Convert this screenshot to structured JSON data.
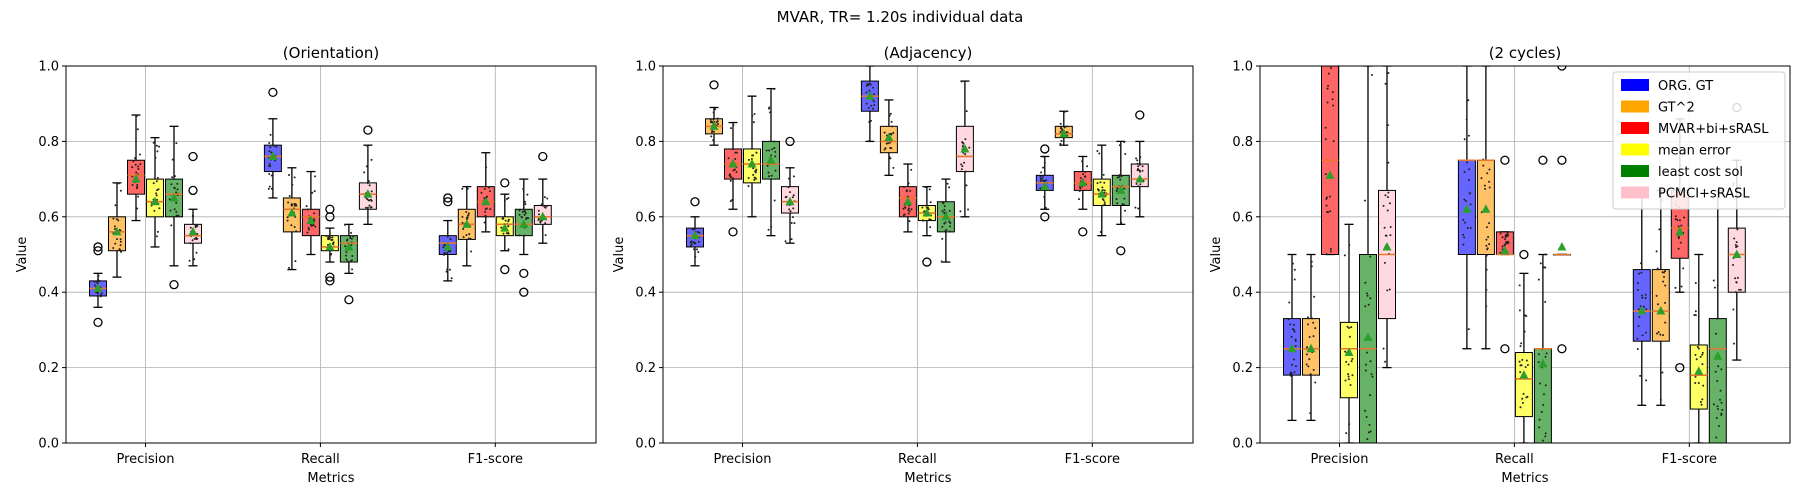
{
  "suptitle": "MVAR, TR= 1.20s individual data",
  "chart_data": [
    {
      "type": "box",
      "title": "(Orientation)",
      "xlabel": "Metrics",
      "ylabel": "Value",
      "ylim": [
        0,
        1
      ],
      "yticks": [
        "0.0",
        "0.2",
        "0.4",
        "0.6",
        "0.8",
        "1.0"
      ],
      "categories": [
        "Precision",
        "Recall",
        "F1-score"
      ],
      "grid": true,
      "series": [
        {
          "name": "ORG. GT",
          "boxes": [
            {
              "whislo": 0.36,
              "q1": 0.39,
              "med": 0.41,
              "q3": 0.43,
              "whishi": 0.45,
              "mean": 0.41,
              "fliers": [
                0.32,
                0.51,
                0.52
              ]
            },
            {
              "whislo": 0.65,
              "q1": 0.72,
              "med": 0.76,
              "q3": 0.79,
              "whishi": 0.86,
              "mean": 0.76,
              "fliers": [
                0.93
              ]
            },
            {
              "whislo": 0.43,
              "q1": 0.5,
              "med": 0.53,
              "q3": 0.55,
              "whishi": 0.59,
              "mean": 0.52,
              "fliers": [
                0.64,
                0.65
              ]
            }
          ]
        },
        {
          "name": "GT^2",
          "boxes": [
            {
              "whislo": 0.44,
              "q1": 0.51,
              "med": 0.56,
              "q3": 0.6,
              "whishi": 0.69,
              "mean": 0.56,
              "fliers": []
            },
            {
              "whislo": 0.46,
              "q1": 0.56,
              "med": 0.62,
              "q3": 0.65,
              "whishi": 0.73,
              "mean": 0.61,
              "fliers": []
            },
            {
              "whislo": 0.47,
              "q1": 0.54,
              "med": 0.58,
              "q3": 0.62,
              "whishi": 0.68,
              "mean": 0.58,
              "fliers": []
            }
          ]
        },
        {
          "name": "MVAR+bi+sRASL",
          "boxes": [
            {
              "whislo": 0.59,
              "q1": 0.66,
              "med": 0.71,
              "q3": 0.75,
              "whishi": 0.87,
              "mean": 0.7,
              "fliers": []
            },
            {
              "whislo": 0.5,
              "q1": 0.55,
              "med": 0.6,
              "q3": 0.62,
              "whishi": 0.72,
              "mean": 0.59,
              "fliers": []
            },
            {
              "whislo": 0.56,
              "q1": 0.6,
              "med": 0.64,
              "q3": 0.68,
              "whishi": 0.77,
              "mean": 0.64,
              "fliers": []
            }
          ]
        },
        {
          "name": "mean error",
          "boxes": [
            {
              "whislo": 0.52,
              "q1": 0.6,
              "med": 0.64,
              "q3": 0.7,
              "whishi": 0.81,
              "mean": 0.64,
              "fliers": []
            },
            {
              "whislo": 0.48,
              "q1": 0.51,
              "med": 0.52,
              "q3": 0.55,
              "whishi": 0.57,
              "mean": 0.52,
              "fliers": [
                0.43,
                0.44,
                0.6,
                0.62
              ]
            },
            {
              "whislo": 0.51,
              "q1": 0.55,
              "med": 0.58,
              "q3": 0.6,
              "whishi": 0.66,
              "mean": 0.57,
              "fliers": [
                0.46,
                0.69
              ]
            }
          ]
        },
        {
          "name": "least cost sol",
          "boxes": [
            {
              "whislo": 0.47,
              "q1": 0.6,
              "med": 0.66,
              "q3": 0.7,
              "whishi": 0.84,
              "mean": 0.65,
              "fliers": [
                0.42
              ]
            },
            {
              "whislo": 0.45,
              "q1": 0.48,
              "med": 0.53,
              "q3": 0.55,
              "whishi": 0.58,
              "mean": 0.52,
              "fliers": [
                0.38
              ]
            },
            {
              "whislo": 0.5,
              "q1": 0.55,
              "med": 0.58,
              "q3": 0.62,
              "whishi": 0.7,
              "mean": 0.58,
              "fliers": [
                0.45,
                0.4
              ]
            }
          ]
        },
        {
          "name": "PCMCI+sRASL",
          "boxes": [
            {
              "whislo": 0.47,
              "q1": 0.53,
              "med": 0.55,
              "q3": 0.58,
              "whishi": 0.62,
              "mean": 0.56,
              "fliers": [
                0.76,
                0.67
              ]
            },
            {
              "whislo": 0.58,
              "q1": 0.62,
              "med": 0.66,
              "q3": 0.69,
              "whishi": 0.79,
              "mean": 0.66,
              "fliers": [
                0.83
              ]
            },
            {
              "whislo": 0.53,
              "q1": 0.58,
              "med": 0.6,
              "q3": 0.63,
              "whishi": 0.7,
              "mean": 0.6,
              "fliers": [
                0.76
              ]
            }
          ]
        }
      ]
    },
    {
      "type": "box",
      "title": "(Adjacency)",
      "xlabel": "Metrics",
      "ylabel": "Value",
      "ylim": [
        0,
        1
      ],
      "yticks": [
        "0.0",
        "0.2",
        "0.4",
        "0.6",
        "0.8",
        "1.0"
      ],
      "categories": [
        "Precision",
        "Recall",
        "F1-score"
      ],
      "grid": true,
      "series": [
        {
          "name": "ORG. GT",
          "boxes": [
            {
              "whislo": 0.47,
              "q1": 0.52,
              "med": 0.55,
              "q3": 0.57,
              "whishi": 0.6,
              "mean": 0.55,
              "fliers": [
                0.64
              ]
            },
            {
              "whislo": 0.8,
              "q1": 0.88,
              "med": 0.92,
              "q3": 0.96,
              "whishi": 1.0,
              "mean": 0.92,
              "fliers": []
            },
            {
              "whislo": 0.62,
              "q1": 0.67,
              "med": 0.69,
              "q3": 0.71,
              "whishi": 0.76,
              "mean": 0.68,
              "fliers": [
                0.6,
                0.78
              ]
            }
          ]
        },
        {
          "name": "GT^2",
          "boxes": [
            {
              "whislo": 0.79,
              "q1": 0.82,
              "med": 0.84,
              "q3": 0.86,
              "whishi": 0.89,
              "mean": 0.84,
              "fliers": [
                0.95
              ]
            },
            {
              "whislo": 0.71,
              "q1": 0.77,
              "med": 0.8,
              "q3": 0.84,
              "whishi": 0.91,
              "mean": 0.81,
              "fliers": []
            },
            {
              "whislo": 0.79,
              "q1": 0.81,
              "med": 0.82,
              "q3": 0.84,
              "whishi": 0.88,
              "mean": 0.82,
              "fliers": []
            }
          ]
        },
        {
          "name": "MVAR+bi+sRASL",
          "boxes": [
            {
              "whislo": 0.62,
              "q1": 0.7,
              "med": 0.74,
              "q3": 0.78,
              "whishi": 0.85,
              "mean": 0.74,
              "fliers": [
                0.56
              ]
            },
            {
              "whislo": 0.56,
              "q1": 0.6,
              "med": 0.65,
              "q3": 0.68,
              "whishi": 0.74,
              "mean": 0.64,
              "fliers": []
            },
            {
              "whislo": 0.62,
              "q1": 0.67,
              "med": 0.69,
              "q3": 0.72,
              "whishi": 0.76,
              "mean": 0.69,
              "fliers": [
                0.56
              ]
            }
          ]
        },
        {
          "name": "mean error",
          "boxes": [
            {
              "whislo": 0.6,
              "q1": 0.69,
              "med": 0.74,
              "q3": 0.78,
              "whishi": 0.92,
              "mean": 0.74,
              "fliers": []
            },
            {
              "whislo": 0.55,
              "q1": 0.59,
              "med": 0.61,
              "q3": 0.63,
              "whishi": 0.68,
              "mean": 0.61,
              "fliers": [
                0.48
              ]
            },
            {
              "whislo": 0.55,
              "q1": 0.63,
              "med": 0.66,
              "q3": 0.7,
              "whishi": 0.79,
              "mean": 0.66,
              "fliers": []
            }
          ]
        },
        {
          "name": "least cost sol",
          "boxes": [
            {
              "whislo": 0.55,
              "q1": 0.7,
              "med": 0.74,
              "q3": 0.8,
              "whishi": 0.94,
              "mean": 0.75,
              "fliers": []
            },
            {
              "whislo": 0.48,
              "q1": 0.56,
              "med": 0.6,
              "q3": 0.64,
              "whishi": 0.7,
              "mean": 0.6,
              "fliers": []
            },
            {
              "whislo": 0.58,
              "q1": 0.63,
              "med": 0.68,
              "q3": 0.71,
              "whishi": 0.8,
              "mean": 0.67,
              "fliers": [
                0.51
              ]
            }
          ]
        },
        {
          "name": "PCMCI+sRASL",
          "boxes": [
            {
              "whislo": 0.53,
              "q1": 0.61,
              "med": 0.64,
              "q3": 0.68,
              "whishi": 0.73,
              "mean": 0.64,
              "fliers": [
                0.8
              ]
            },
            {
              "whislo": 0.6,
              "q1": 0.72,
              "med": 0.76,
              "q3": 0.84,
              "whishi": 0.96,
              "mean": 0.78,
              "fliers": []
            },
            {
              "whislo": 0.6,
              "q1": 0.68,
              "med": 0.7,
              "q3": 0.74,
              "whishi": 0.8,
              "mean": 0.7,
              "fliers": [
                0.87
              ]
            }
          ]
        }
      ]
    },
    {
      "type": "box",
      "title": "(2 cycles)",
      "xlabel": "Metrics",
      "ylabel": "Value",
      "ylim": [
        0,
        1
      ],
      "yticks": [
        "0.0",
        "0.2",
        "0.4",
        "0.6",
        "0.8",
        "1.0"
      ],
      "categories": [
        "Precision",
        "Recall",
        "F1-score"
      ],
      "grid": true,
      "legend": {
        "placement": "top-right"
      },
      "series": [
        {
          "name": "ORG. GT",
          "boxes": [
            {
              "whislo": 0.06,
              "q1": 0.18,
              "med": 0.25,
              "q3": 0.33,
              "whishi": 0.5,
              "mean": 0.25,
              "fliers": []
            },
            {
              "whislo": 0.25,
              "q1": 0.5,
              "med": 0.75,
              "q3": 0.75,
              "whishi": 1.0,
              "mean": 0.62,
              "fliers": []
            },
            {
              "whislo": 0.1,
              "q1": 0.27,
              "med": 0.35,
              "q3": 0.46,
              "whishi": 0.67,
              "mean": 0.35,
              "fliers": []
            }
          ]
        },
        {
          "name": "GT^2",
          "boxes": [
            {
              "whislo": 0.06,
              "q1": 0.18,
              "med": 0.25,
              "q3": 0.33,
              "whishi": 0.5,
              "mean": 0.25,
              "fliers": []
            },
            {
              "whislo": 0.25,
              "q1": 0.5,
              "med": 0.75,
              "q3": 0.75,
              "whishi": 1.0,
              "mean": 0.62,
              "fliers": []
            },
            {
              "whislo": 0.1,
              "q1": 0.27,
              "med": 0.35,
              "q3": 0.46,
              "whishi": 0.67,
              "mean": 0.35,
              "fliers": []
            }
          ]
        },
        {
          "name": "MVAR+bi+sRASL",
          "boxes": [
            {
              "whislo": 0.5,
              "q1": 0.5,
              "med": 0.75,
              "q3": 1.0,
              "whishi": 1.0,
              "mean": 0.71,
              "fliers": []
            },
            {
              "whislo": 0.5,
              "q1": 0.5,
              "med": 0.5,
              "q3": 0.56,
              "whishi": 0.56,
              "mean": 0.51,
              "fliers": [
                0.25,
                0.75
              ]
            },
            {
              "whislo": 0.4,
              "q1": 0.49,
              "med": 0.57,
              "q3": 0.67,
              "whishi": 0.86,
              "mean": 0.56,
              "fliers": [
                0.2
              ]
            }
          ]
        },
        {
          "name": "mean error",
          "boxes": [
            {
              "whislo": 0.0,
              "q1": 0.12,
              "med": 0.25,
              "q3": 0.32,
              "whishi": 0.58,
              "mean": 0.24,
              "fliers": []
            },
            {
              "whislo": 0.0,
              "q1": 0.07,
              "med": 0.17,
              "q3": 0.24,
              "whishi": 0.45,
              "mean": 0.18,
              "fliers": [
                0.5
              ]
            },
            {
              "whislo": 0.0,
              "q1": 0.09,
              "med": 0.18,
              "q3": 0.26,
              "whishi": 0.5,
              "mean": 0.19,
              "fliers": []
            }
          ]
        },
        {
          "name": "least cost sol",
          "boxes": [
            {
              "whislo": 0.0,
              "q1": 0.0,
              "med": 0.25,
              "q3": 0.5,
              "whishi": 1.0,
              "mean": 0.28,
              "fliers": []
            },
            {
              "whislo": 0.0,
              "q1": 0.0,
              "med": 0.25,
              "q3": 0.25,
              "whishi": 0.5,
              "mean": 0.21,
              "fliers": [
                0.75
              ]
            },
            {
              "whislo": 0.0,
              "q1": 0.0,
              "med": 0.25,
              "q3": 0.33,
              "whishi": 0.67,
              "mean": 0.23,
              "fliers": []
            }
          ]
        },
        {
          "name": "PCMCI+sRASL",
          "boxes": [
            {
              "whislo": 0.2,
              "q1": 0.33,
              "med": 0.5,
              "q3": 0.67,
              "whishi": 1.0,
              "mean": 0.52,
              "fliers": []
            },
            {
              "whislo": 0.5,
              "q1": 0.5,
              "med": 0.5,
              "q3": 0.5,
              "whishi": 0.5,
              "mean": 0.52,
              "fliers": [
                0.25,
                0.75,
                1.0
              ]
            },
            {
              "whislo": 0.22,
              "q1": 0.4,
              "med": 0.5,
              "q3": 0.57,
              "whishi": 0.75,
              "mean": 0.5,
              "fliers": [
                0.89
              ]
            }
          ]
        }
      ]
    }
  ],
  "legend": [
    {
      "label": "ORG. GT",
      "color": "#0000ff"
    },
    {
      "label": "GT^2",
      "color": "#ffa500"
    },
    {
      "label": "MVAR+bi+sRASL",
      "color": "#ff0000"
    },
    {
      "label": "mean error",
      "color": "#ffff00"
    },
    {
      "label": "least cost sol",
      "color": "#008000"
    },
    {
      "label": "PCMCI+sRASL",
      "color": "#ffc0cb"
    }
  ],
  "colors": {
    "box_fills": [
      "#6666ff",
      "#ffc266",
      "#ff6666",
      "#ffff66",
      "#66b266",
      "#ffd9df"
    ],
    "median": "#e8772e",
    "mean_marker": "#2ca02c",
    "grid": "#b0b0b0"
  }
}
